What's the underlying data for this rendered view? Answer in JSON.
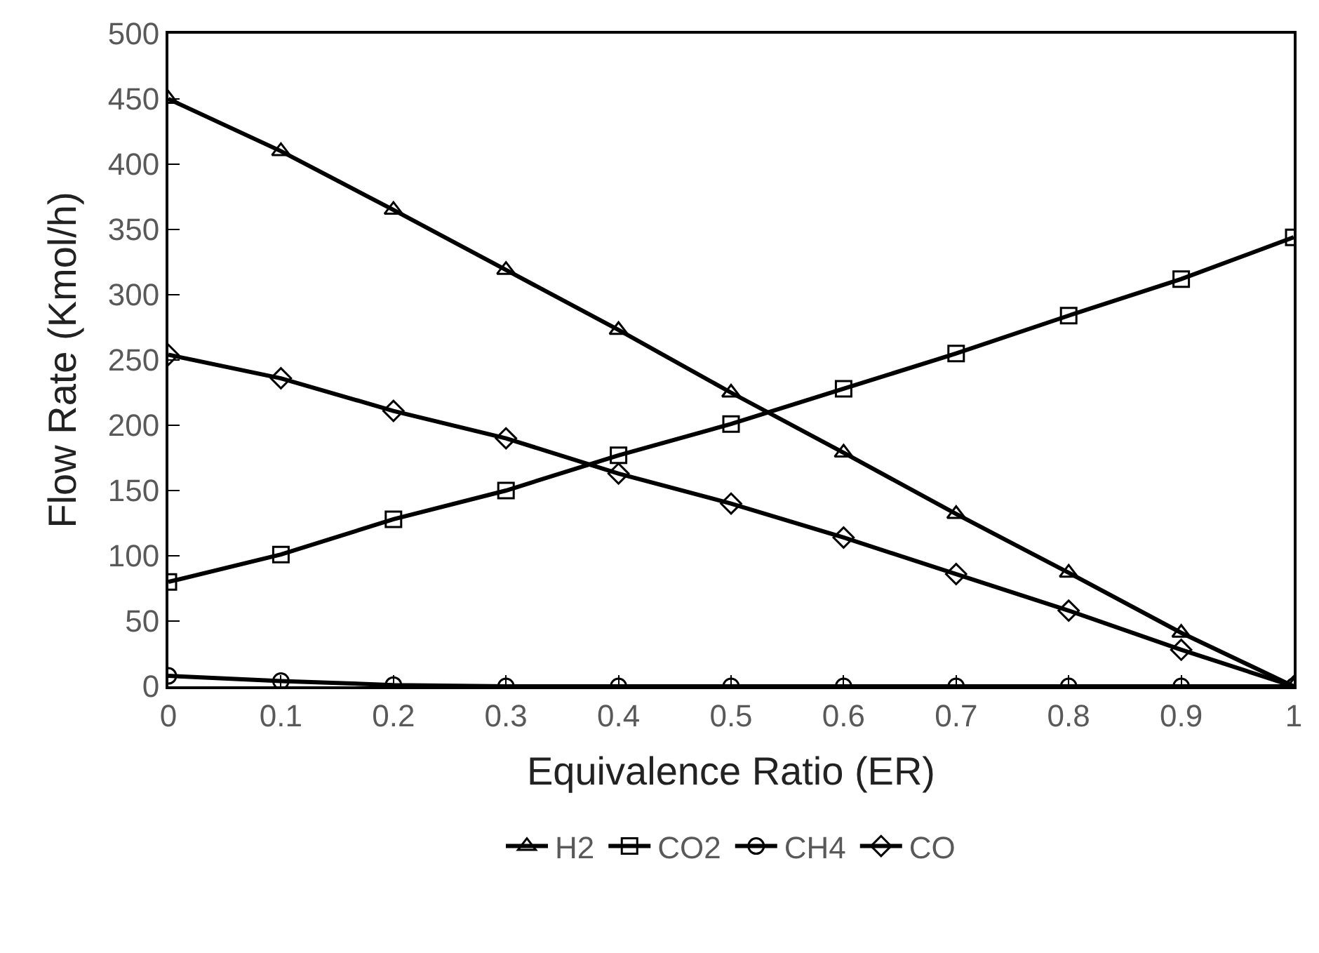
{
  "chart_data": {
    "type": "line",
    "xlabel": "Equivalence Ratio (ER)",
    "ylabel": "Flow Rate (Kmol/h)",
    "x": [
      0,
      0.1,
      0.2,
      0.3,
      0.4,
      0.5,
      0.6,
      0.7,
      0.8,
      0.9,
      1
    ],
    "series": [
      {
        "name": "H2",
        "color": "#000000",
        "marker": "triangle",
        "values": [
          450,
          410,
          365,
          319,
          273,
          225,
          179,
          132,
          87,
          41,
          0
        ]
      },
      {
        "name": "CO2",
        "color": "#000000",
        "marker": "square",
        "values": [
          80,
          101,
          128,
          150,
          177,
          201,
          228,
          255,
          284,
          312,
          344
        ]
      },
      {
        "name": "CH4",
        "color": "#000000",
        "marker": "circle",
        "values": [
          8,
          4,
          1,
          0,
          0,
          0,
          0,
          0,
          0,
          0,
          0
        ]
      },
      {
        "name": "CO",
        "color": "#000000",
        "marker": "diamond",
        "values": [
          254,
          236,
          211,
          190,
          163,
          140,
          114,
          86,
          58,
          28,
          0
        ]
      }
    ],
    "xlim": [
      0,
      1
    ],
    "xticks": [
      0,
      0.1,
      0.2,
      0.3,
      0.4,
      0.5,
      0.6,
      0.7,
      0.8,
      0.9,
      1
    ],
    "ylim": [
      0,
      500
    ],
    "yticks": [
      0,
      50,
      100,
      150,
      200,
      250,
      300,
      350,
      400,
      450,
      500
    ],
    "grid": false,
    "legend": "bottom",
    "line_style": "solid"
  }
}
